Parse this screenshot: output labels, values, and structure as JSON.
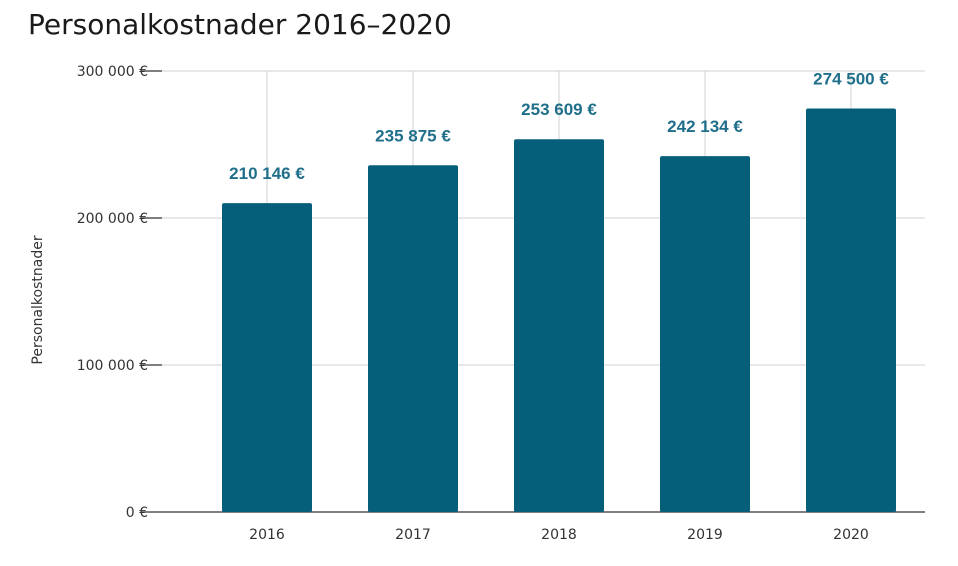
{
  "chart_data": {
    "type": "bar",
    "title": "Personalkostnader 2016–2020",
    "ylabel": "Personalkostnader",
    "xlabel": "",
    "categories": [
      "2016",
      "2017",
      "2018",
      "2019",
      "2020"
    ],
    "values": [
      210146,
      235875,
      253609,
      242134,
      274500
    ],
    "data_labels": [
      "210 146 €",
      "235 875 €",
      "253 609 €",
      "242 134 €",
      "274 500 €"
    ],
    "ylim": [
      0,
      300000
    ],
    "yticks": [
      0,
      100000,
      200000,
      300000
    ],
    "ytick_labels": [
      "0 €",
      "100 000 €",
      "200 000 €",
      "300 000 €"
    ],
    "grid": true,
    "legend": "none",
    "bar_color": "#065f7a",
    "label_color": "#1f6f8b"
  }
}
